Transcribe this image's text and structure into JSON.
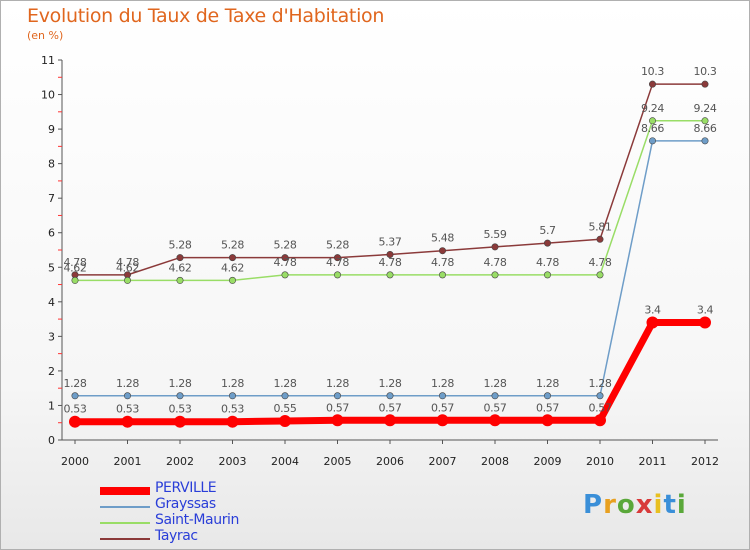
{
  "title": "Evolution du Taux de Taxe d'Habitation",
  "subtitle": "(en %)",
  "logo": "Proxiti",
  "chart_data": {
    "type": "line",
    "x": [
      "2000",
      "2001",
      "2002",
      "2003",
      "2004",
      "2005",
      "2006",
      "2007",
      "2008",
      "2009",
      "2010",
      "2011",
      "2012"
    ],
    "ylim": [
      0,
      11
    ],
    "yticks": [
      "0",
      "1",
      "2",
      "3",
      "4",
      "5",
      "6",
      "7",
      "8",
      "9",
      "10",
      "11"
    ],
    "legend_position": "bottom-left",
    "grid": false,
    "series": [
      {
        "name": "PERVILLE",
        "color": "#ff0000",
        "values": [
          0.53,
          0.53,
          0.53,
          0.53,
          0.55,
          0.57,
          0.57,
          0.57,
          0.57,
          0.57,
          0.57,
          3.4,
          3.4
        ],
        "labels": [
          "0.53",
          "0.53",
          "0.53",
          "0.53",
          "0.55",
          "0.57",
          "0.57",
          "0.57",
          "0.57",
          "0.57",
          "0.57",
          "3.4",
          "3.4"
        ]
      },
      {
        "name": "Grayssas",
        "color": "#6e9dc8",
        "values": [
          1.28,
          1.28,
          1.28,
          1.28,
          1.28,
          1.28,
          1.28,
          1.28,
          1.28,
          1.28,
          1.28,
          8.66,
          8.66
        ],
        "labels": [
          "1.28",
          "1.28",
          "1.28",
          "1.28",
          "1.28",
          "1.28",
          "1.28",
          "1.28",
          "1.28",
          "1.28",
          "1.28",
          "8.66",
          "8.66"
        ]
      },
      {
        "name": "Saint-Maurin",
        "color": "#99dd66",
        "values": [
          4.62,
          4.62,
          4.62,
          4.62,
          4.78,
          4.78,
          4.78,
          4.78,
          4.78,
          4.78,
          4.78,
          9.24,
          9.24
        ],
        "labels": [
          "4.62",
          "4.62",
          "4.62",
          "4.62",
          "4.78",
          "4.78",
          "4.78",
          "4.78",
          "4.78",
          "4.78",
          "4.78",
          "9.24",
          "9.24"
        ]
      },
      {
        "name": "Tayrac",
        "color": "#8b3a3a",
        "values": [
          4.78,
          4.78,
          5.28,
          5.28,
          5.28,
          5.28,
          5.37,
          5.48,
          5.59,
          5.7,
          5.81,
          10.3,
          10.3
        ],
        "labels": [
          "4.78",
          "4.78",
          "5.28",
          "5.28",
          "5.28",
          "5.28",
          "5.37",
          "5.48",
          "5.59",
          "5.7",
          "5.81",
          "10.3",
          "10.3"
        ]
      }
    ]
  }
}
